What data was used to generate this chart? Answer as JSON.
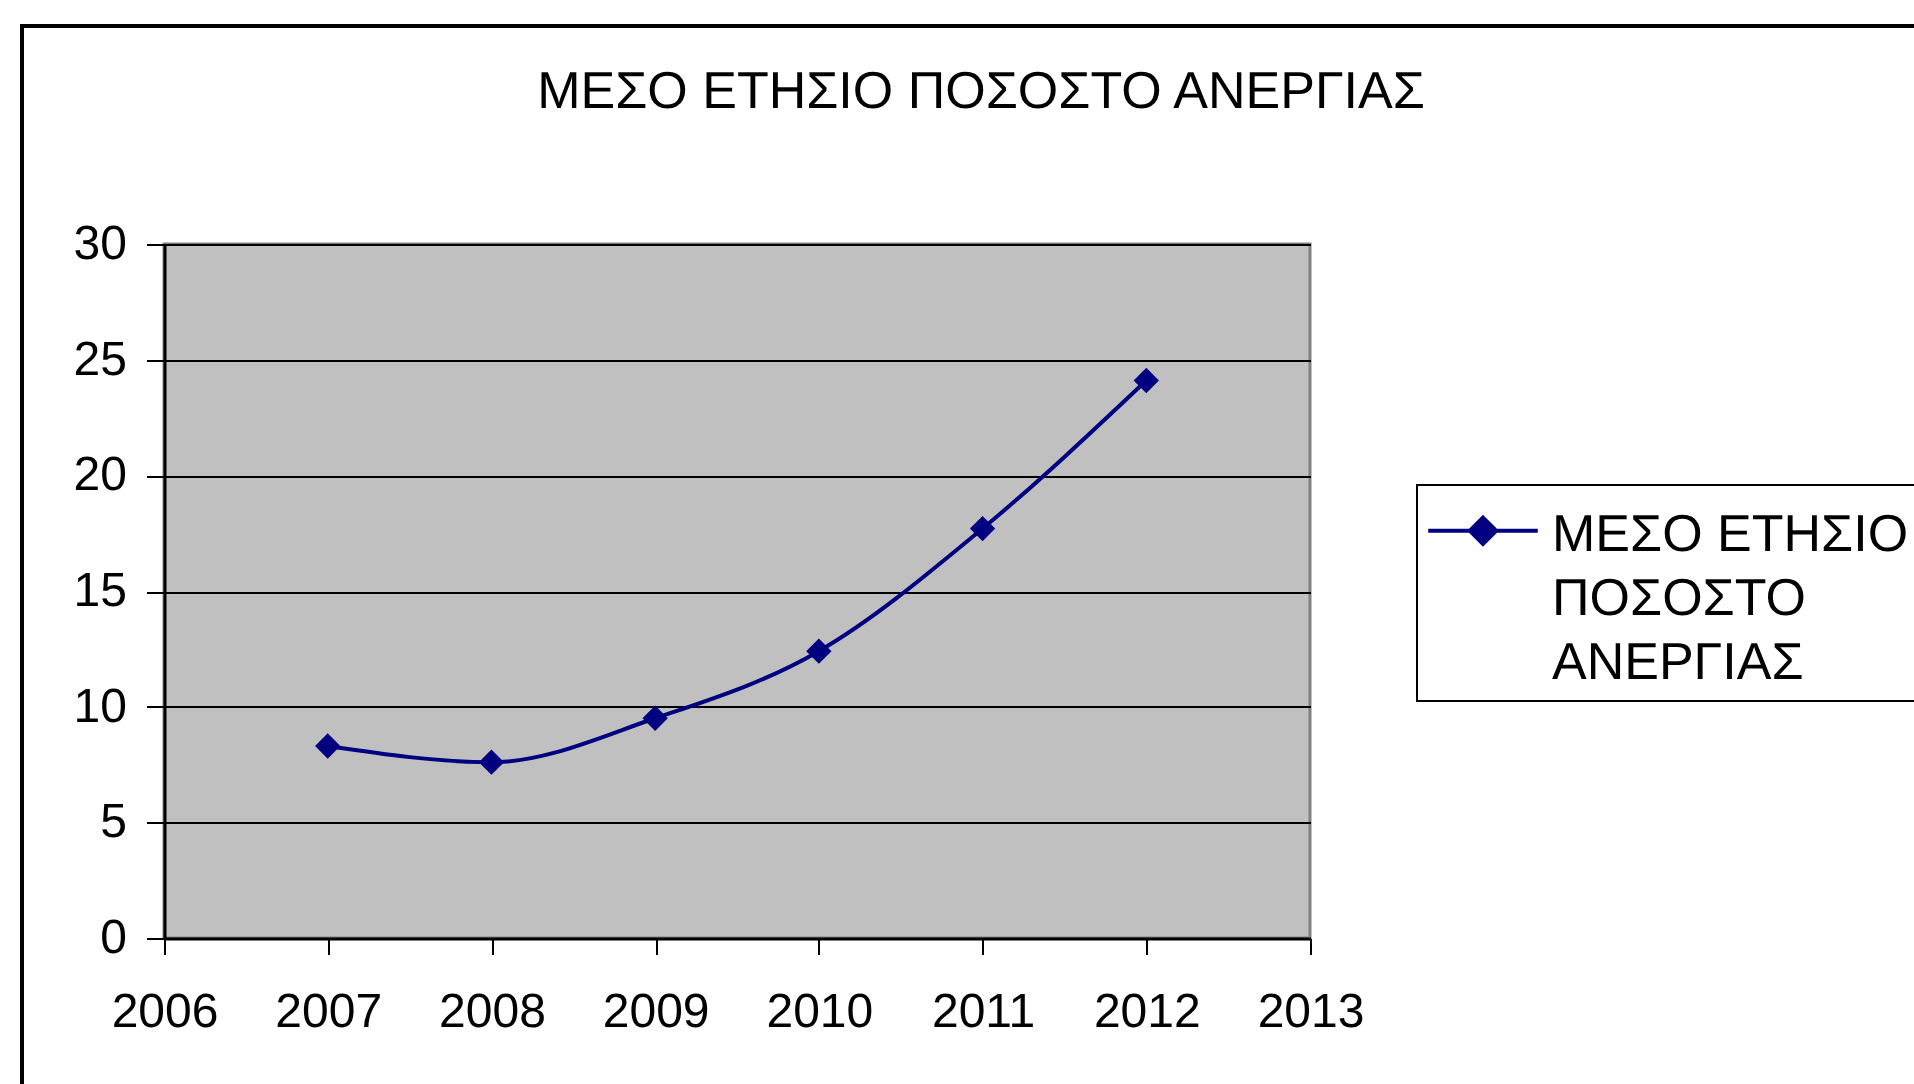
{
  "chart_data": {
    "type": "line",
    "title": "ΜΕΣΟ ΕΤΗΣΙΟ ΠΟΣΟΣΤΟ ΑΝΕΡΓΙΑΣ",
    "x": [
      2007,
      2008,
      2009,
      2010,
      2011,
      2012
    ],
    "series": [
      {
        "name": "ΜΕΣΟ ΕΤΗΣΙΟ ΠΟΣΟΣΤΟ ΑΝΕΡΓΙΑΣ",
        "color": "#000080",
        "values": [
          8.3,
          7.6,
          9.5,
          12.4,
          17.7,
          24.1
        ]
      }
    ],
    "xlim": [
      2006,
      2013
    ],
    "xticks": [
      2006,
      2007,
      2008,
      2009,
      2010,
      2011,
      2012,
      2013
    ],
    "ylim": [
      0,
      30
    ],
    "yticks": [
      0,
      5,
      10,
      15,
      20,
      25,
      30
    ],
    "grid": "y",
    "legend": "right",
    "marker": "diamond",
    "line_style": "solid"
  }
}
